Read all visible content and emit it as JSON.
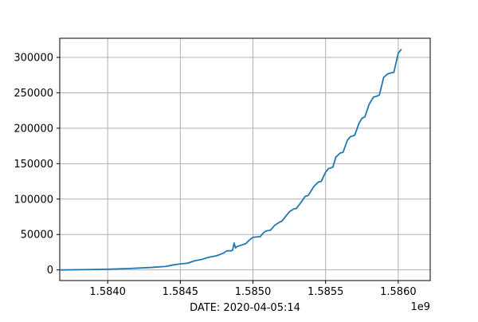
{
  "chart_data": {
    "type": "line",
    "title": "",
    "xlabel": "DATE: 2020-04-05:14",
    "ylabel": "",
    "x_offset_label": "1e9",
    "xlim": [
      1.58367,
      1.58622
    ],
    "ylim": [
      -15000,
      327000
    ],
    "grid": true,
    "x_ticks": [
      1.584,
      1.5845,
      1.585,
      1.5855,
      1.586
    ],
    "x_tick_labels": [
      "1.5840",
      "1.5845",
      "1.5850",
      "1.5855",
      "1.5860"
    ],
    "y_ticks": [
      0,
      50000,
      100000,
      150000,
      200000,
      250000,
      300000
    ],
    "y_tick_labels": [
      "0",
      "50000",
      "100000",
      "150000",
      "200000",
      "250000",
      "300000"
    ],
    "colors": {
      "line": "#1f77b4",
      "grid": "#b0b0b0",
      "axes": "#000000"
    },
    "series": [
      {
        "name": "",
        "x": [
          1.58368,
          1.58385,
          1.584,
          1.58415,
          1.5843,
          1.5844,
          1.58445,
          1.5845,
          1.58455,
          1.5846,
          1.58465,
          1.5847,
          1.58475,
          1.5848,
          1.58482,
          1.58485,
          1.58486,
          1.58487,
          1.58488,
          1.58489,
          1.58492,
          1.58495,
          1.58498,
          1.585,
          1.58505,
          1.58507,
          1.58509,
          1.58512,
          1.58515,
          1.58518,
          1.5852,
          1.58525,
          1.58528,
          1.5853,
          1.58534,
          1.58536,
          1.58538,
          1.58542,
          1.58545,
          1.58547,
          1.5855,
          1.58552,
          1.58555,
          1.58557,
          1.5856,
          1.58562,
          1.58565,
          1.58567,
          1.5857,
          1.58573,
          1.58575,
          1.58577,
          1.5858,
          1.58583,
          1.58585,
          1.58587,
          1.5859,
          1.58593,
          1.58595,
          1.58597,
          1.586,
          1.58602
        ],
        "y": [
          0,
          500,
          1000,
          2000,
          3500,
          5000,
          7000,
          8500,
          9500,
          13000,
          15000,
          18000,
          20000,
          24000,
          27000,
          27000,
          28000,
          38000,
          31000,
          33000,
          35000,
          37000,
          43000,
          46000,
          47000,
          52000,
          55000,
          56000,
          63000,
          67000,
          69000,
          82000,
          86000,
          87000,
          98000,
          104000,
          105000,
          118000,
          124000,
          125000,
          138000,
          143000,
          145000,
          159000,
          165000,
          166000,
          183000,
          188000,
          190000,
          207000,
          214000,
          216000,
          234000,
          244000,
          245000,
          247000,
          272000,
          277000,
          278000,
          279000,
          306000,
          311000
        ]
      }
    ]
  }
}
